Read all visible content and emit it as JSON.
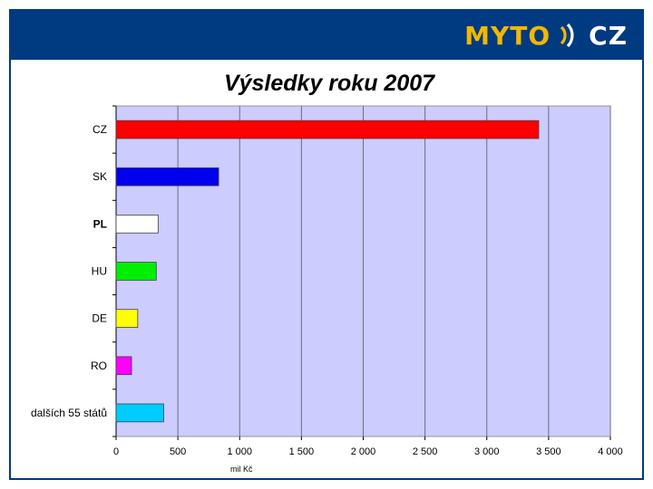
{
  "header": {
    "logo_left": "MYTO",
    "logo_right": "CZ",
    "colors": {
      "bar": "#003a80",
      "logo_accent": "#f2b800"
    }
  },
  "chart_data": {
    "type": "bar",
    "orientation": "horizontal",
    "title": "Výsledky roku 2007",
    "xlabel": "mil Kč",
    "ylabel": "",
    "xlim": [
      0,
      4000
    ],
    "x_ticks": [
      0,
      500,
      1000,
      1500,
      2000,
      2500,
      3000,
      3500,
      4000
    ],
    "x_tick_labels": [
      "0",
      "500",
      "1 000",
      "1 500",
      "2 000",
      "2 500",
      "3 000",
      "3 500",
      "4 000"
    ],
    "categories": [
      "CZ",
      "SK",
      "PL",
      "HU",
      "DE",
      "RO",
      "dalších 55 států"
    ],
    "values": [
      3420,
      830,
      340,
      325,
      175,
      125,
      385
    ],
    "colors": [
      "#ff0000",
      "#0000ee",
      "#ffffff",
      "#00ee00",
      "#ffff00",
      "#ff00ff",
      "#00ccff"
    ],
    "bold_categories": [
      "PL"
    ],
    "plot_background": "#ccccff",
    "grid": true,
    "legend": "none"
  }
}
